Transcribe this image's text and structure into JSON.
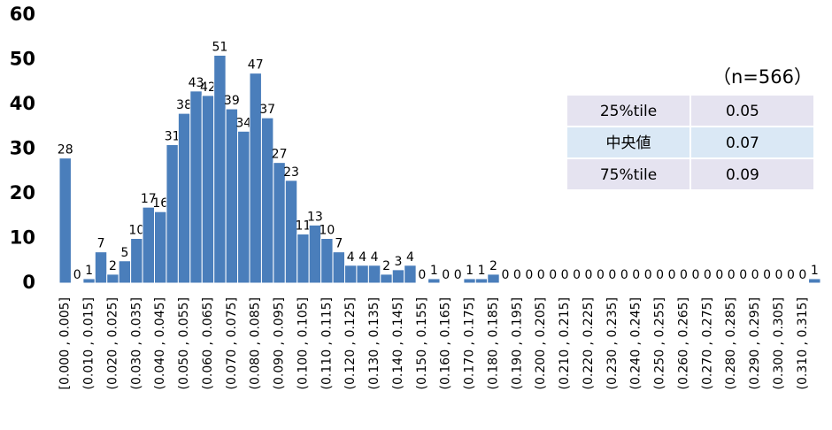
{
  "chart_data": {
    "type": "bar",
    "color": "#4a7ebb",
    "categories": [
      "[0.000 , 0.005]",
      null,
      "(0.010 , 0.015]",
      null,
      "(0.020 , 0.025]",
      null,
      "(0.030 , 0.035]",
      null,
      "(0.040 , 0.045]",
      null,
      "(0.050 , 0.055]",
      null,
      "(0.060 , 0.065]",
      null,
      "(0.070 , 0.075]",
      null,
      "(0.080 , 0.085]",
      null,
      "(0.090 , 0.095]",
      null,
      "(0.100 , 0.105]",
      null,
      "(0.110 , 0.115]",
      null,
      "(0.120 , 0.125]",
      null,
      "(0.130 , 0.135]",
      null,
      "(0.140 , 0.145]",
      null,
      "(0.150 , 0.155]",
      null,
      "(0.160 , 0.165]",
      null,
      "(0.170 , 0.175]",
      null,
      "(0.180 , 0.185]",
      null,
      "(0.190 , 0.195]",
      null,
      "(0.200 , 0.205]",
      null,
      "(0.210 , 0.215]",
      null,
      "(0.220 , 0.225]",
      null,
      "(0.230 , 0.235]",
      null,
      "(0.240 , 0.245]",
      null,
      "(0.250 , 0.255]",
      null,
      "(0.260 , 0.265]",
      null,
      "(0.270 , 0.275]",
      null,
      "(0.280 , 0.285]",
      null,
      "(0.290 , 0.295]",
      null,
      "(0.300 , 0.305]",
      null,
      "(0.310 , 0.315]",
      null
    ],
    "values": [
      28,
      0,
      1,
      7,
      2,
      5,
      10,
      17,
      16,
      31,
      38,
      43,
      42,
      51,
      39,
      34,
      47,
      37,
      27,
      23,
      11,
      13,
      10,
      7,
      4,
      4,
      4,
      2,
      3,
      4,
      0,
      1,
      0,
      0,
      1,
      1,
      2,
      0,
      0,
      0,
      0,
      0,
      0,
      0,
      0,
      0,
      0,
      0,
      0,
      0,
      0,
      0,
      0,
      0,
      0,
      0,
      0,
      0,
      0,
      0,
      0,
      0,
      0,
      1
    ],
    "ylim": [
      0,
      60
    ],
    "yticks": [
      0,
      10,
      20,
      30,
      40,
      50,
      60
    ],
    "grid": false
  },
  "table": {
    "note": "（n=566）",
    "rows": [
      [
        "25%tile",
        "0.05"
      ],
      [
        "中央値",
        "0.07"
      ],
      [
        "75%tile",
        "0.09"
      ]
    ]
  }
}
